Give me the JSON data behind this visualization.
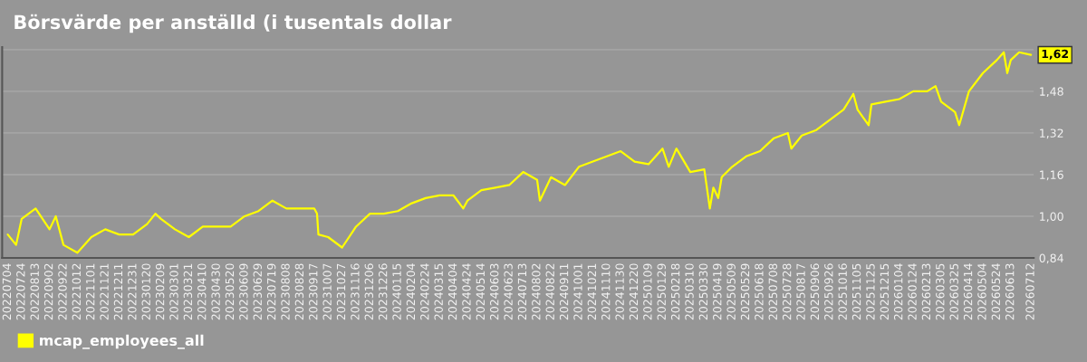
{
  "chart_data": {
    "type": "line",
    "title": "Börsvärde per anställd (i tusentals dollar",
    "x": [
      "2022-07-04",
      "2022-07-16",
      "2022-07-24",
      "2022-08-13",
      "2022-09-02",
      "2022-09-11",
      "2022-09-22",
      "2022-10-12",
      "2022-11-01",
      "2022-11-21",
      "2022-12-11",
      "2022-12-31",
      "2023-01-20",
      "2023-02-01",
      "2023-02-09",
      "2023-03-01",
      "2023-03-21",
      "2023-04-10",
      "2023-04-30",
      "2023-05-20",
      "2023-06-09",
      "2023-06-29",
      "2023-07-19",
      "2023-08-08",
      "2023-08-28",
      "2023-09-17",
      "2023-09-21",
      "2023-09-23",
      "2023-10-07",
      "2023-10-27",
      "2023-11-16",
      "2023-12-06",
      "2023-12-26",
      "2024-01-15",
      "2024-02-04",
      "2024-02-24",
      "2024-03-15",
      "2024-04-04",
      "2024-04-18",
      "2024-04-24",
      "2024-05-14",
      "2024-06-03",
      "2024-06-23",
      "2024-07-13",
      "2024-08-02",
      "2024-08-06",
      "2024-08-22",
      "2024-09-11",
      "2024-10-01",
      "2024-10-21",
      "2024-11-10",
      "2024-11-30",
      "2024-12-20",
      "2025-01-09",
      "2025-01-29",
      "2025-02-07",
      "2025-02-18",
      "2025-03-10",
      "2025-03-30",
      "2025-04-07",
      "2025-04-12",
      "2025-04-19",
      "2025-04-24",
      "2025-05-09",
      "2025-05-29",
      "2025-06-18",
      "2025-07-08",
      "2025-07-28",
      "2025-08-02",
      "2025-08-17",
      "2025-09-06",
      "2025-09-26",
      "2025-10-16",
      "2025-10-30",
      "2025-11-05",
      "2025-11-21",
      "2025-11-25",
      "2025-12-15",
      "2026-01-04",
      "2026-01-24",
      "2026-02-13",
      "2026-02-25",
      "2026-03-05",
      "2026-03-25",
      "2026-03-31",
      "2026-04-14",
      "2026-05-04",
      "2026-05-24",
      "2026-06-03",
      "2026-06-08",
      "2026-06-13",
      "2026-06-25",
      "2026-07-12"
    ],
    "series": [
      {
        "name": "mcap_employees_all",
        "color": "#ffff00",
        "values": [
          0.93,
          0.89,
          0.99,
          1.03,
          0.95,
          1.0,
          0.89,
          0.86,
          0.92,
          0.95,
          0.93,
          0.93,
          0.97,
          1.01,
          0.99,
          0.95,
          0.92,
          0.96,
          0.96,
          0.96,
          1.0,
          1.02,
          1.06,
          1.03,
          1.03,
          1.03,
          1.01,
          0.93,
          0.92,
          0.88,
          0.96,
          1.01,
          1.01,
          1.02,
          1.05,
          1.07,
          1.08,
          1.08,
          1.03,
          1.06,
          1.1,
          1.11,
          1.12,
          1.17,
          1.14,
          1.06,
          1.15,
          1.12,
          1.19,
          1.21,
          1.23,
          1.25,
          1.21,
          1.2,
          1.26,
          1.19,
          1.26,
          1.17,
          1.18,
          1.03,
          1.11,
          1.07,
          1.15,
          1.19,
          1.23,
          1.25,
          1.3,
          1.32,
          1.26,
          1.31,
          1.33,
          1.37,
          1.41,
          1.47,
          1.41,
          1.35,
          1.43,
          1.44,
          1.45,
          1.48,
          1.48,
          1.5,
          1.44,
          1.4,
          1.35,
          1.48,
          1.55,
          1.6,
          1.63,
          1.55,
          1.6,
          1.63,
          1.62
        ]
      }
    ],
    "xlim": [
      "2022-06-26",
      "2026-07-16"
    ],
    "xticks": [
      {
        "value": "2022-07-04",
        "label": "20220704"
      },
      {
        "value": "2022-07-24",
        "label": "20220724"
      },
      {
        "value": "2022-08-13",
        "label": "20220813"
      },
      {
        "value": "2022-09-02",
        "label": "20220902"
      },
      {
        "value": "2022-09-22",
        "label": "20220922"
      },
      {
        "value": "2022-10-12",
        "label": "20221012"
      },
      {
        "value": "2022-11-01",
        "label": "20221101"
      },
      {
        "value": "2022-11-21",
        "label": "20221121"
      },
      {
        "value": "2022-12-11",
        "label": "20221211"
      },
      {
        "value": "2022-12-31",
        "label": "20221231"
      },
      {
        "value": "2023-01-20",
        "label": "20230120"
      },
      {
        "value": "2023-02-09",
        "label": "20230209"
      },
      {
        "value": "2023-03-01",
        "label": "20230301"
      },
      {
        "value": "2023-03-21",
        "label": "20230321"
      },
      {
        "value": "2023-04-10",
        "label": "20230410"
      },
      {
        "value": "2023-04-30",
        "label": "20230430"
      },
      {
        "value": "2023-05-20",
        "label": "20230520"
      },
      {
        "value": "2023-06-09",
        "label": "20230609"
      },
      {
        "value": "2023-06-29",
        "label": "20230629"
      },
      {
        "value": "2023-07-19",
        "label": "20230719"
      },
      {
        "value": "2023-08-08",
        "label": "20230808"
      },
      {
        "value": "2023-08-28",
        "label": "20230828"
      },
      {
        "value": "2023-09-17",
        "label": "20230917"
      },
      {
        "value": "2023-10-07",
        "label": "20231007"
      },
      {
        "value": "2023-10-27",
        "label": "20231027"
      },
      {
        "value": "2023-11-16",
        "label": "20231116"
      },
      {
        "value": "2023-12-06",
        "label": "20231206"
      },
      {
        "value": "2023-12-26",
        "label": "20231226"
      },
      {
        "value": "2024-01-15",
        "label": "20240115"
      },
      {
        "value": "2024-02-04",
        "label": "20240204"
      },
      {
        "value": "2024-02-24",
        "label": "20240224"
      },
      {
        "value": "2024-03-15",
        "label": "20240315"
      },
      {
        "value": "2024-04-04",
        "label": "20240404"
      },
      {
        "value": "2024-04-24",
        "label": "20240424"
      },
      {
        "value": "2024-05-14",
        "label": "20240514"
      },
      {
        "value": "2024-06-03",
        "label": "20240603"
      },
      {
        "value": "2024-06-23",
        "label": "20240623"
      },
      {
        "value": "2024-07-13",
        "label": "20240713"
      },
      {
        "value": "2024-08-02",
        "label": "20240802"
      },
      {
        "value": "2024-08-22",
        "label": "20240822"
      },
      {
        "value": "2024-09-11",
        "label": "20240911"
      },
      {
        "value": "2024-10-01",
        "label": "20241001"
      },
      {
        "value": "2024-10-21",
        "label": "20241021"
      },
      {
        "value": "2024-11-10",
        "label": "20241110"
      },
      {
        "value": "2024-11-30",
        "label": "20241130"
      },
      {
        "value": "2024-12-20",
        "label": "20241220"
      },
      {
        "value": "2025-01-09",
        "label": "20250109"
      },
      {
        "value": "2025-01-29",
        "label": "20250129"
      },
      {
        "value": "2025-02-18",
        "label": "20250218"
      },
      {
        "value": "2025-03-10",
        "label": "20250310"
      },
      {
        "value": "2025-03-30",
        "label": "20250330"
      },
      {
        "value": "2025-04-19",
        "label": "20250419"
      },
      {
        "value": "2025-05-09",
        "label": "20250509"
      },
      {
        "value": "2025-05-29",
        "label": "20250529"
      },
      {
        "value": "2025-06-18",
        "label": "20250618"
      },
      {
        "value": "2025-07-08",
        "label": "20250708"
      },
      {
        "value": "2025-07-28",
        "label": "20250728"
      },
      {
        "value": "2025-08-17",
        "label": "20250817"
      },
      {
        "value": "2025-09-06",
        "label": "20250906"
      },
      {
        "value": "2025-09-26",
        "label": "20250926"
      },
      {
        "value": "2025-10-16",
        "label": "20251016"
      },
      {
        "value": "2025-11-05",
        "label": "20251105"
      },
      {
        "value": "2025-11-25",
        "label": "20251125"
      },
      {
        "value": "2025-12-15",
        "label": "20251215"
      },
      {
        "value": "2026-01-04",
        "label": "20260104"
      },
      {
        "value": "2026-01-24",
        "label": "20260124"
      },
      {
        "value": "2026-02-13",
        "label": "20260213"
      },
      {
        "value": "2026-03-05",
        "label": "20260305"
      },
      {
        "value": "2026-03-25",
        "label": "20260325"
      },
      {
        "value": "2026-04-14",
        "label": "20260414"
      },
      {
        "value": "2026-05-04",
        "label": "20260504"
      },
      {
        "value": "2026-05-24",
        "label": "20260524"
      },
      {
        "value": "2026-06-13",
        "label": "20260613"
      },
      {
        "value": "2026-07-12",
        "label": "20260712"
      }
    ],
    "ylim": [
      0.84,
      1.65
    ],
    "yticks": [
      {
        "value": 0.84,
        "label": "0,84"
      },
      {
        "value": 1.0,
        "label": "1,00"
      },
      {
        "value": 1.16,
        "label": "1,16"
      },
      {
        "value": 1.32,
        "label": "1,32"
      },
      {
        "value": 1.48,
        "label": "1,48"
      },
      {
        "value": 1.64,
        "label": null
      }
    ],
    "annotations": [
      {
        "text": "1,62",
        "x": "2026-07-12",
        "y": 1.62
      }
    ],
    "grid": "y",
    "legend": "bottom left",
    "marker": "none",
    "line_style": "solid"
  }
}
